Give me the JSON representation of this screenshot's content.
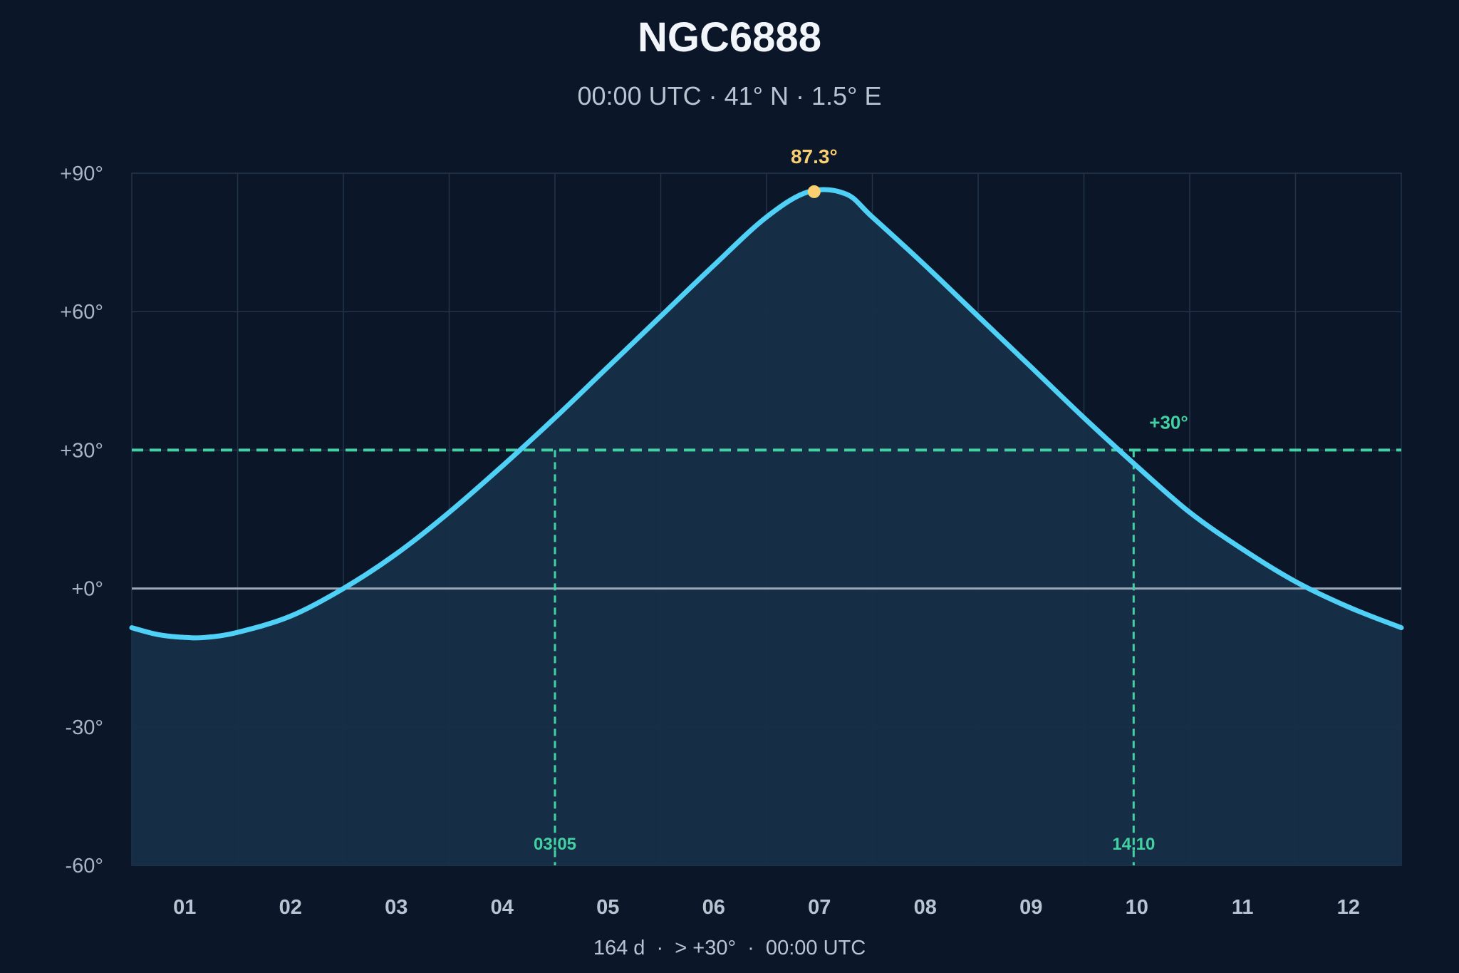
{
  "header": {
    "title": "NGC6888",
    "subtitle": "00:00 UTC · 41° N · 1.5° E"
  },
  "footer": {
    "text": "164 d  ·  > +30°  ·  00:00 UTC"
  },
  "colors": {
    "background": "#0b1628",
    "curve": "#4fd0f7",
    "fill": "#162f47",
    "threshold": "#42d1a3",
    "peak": "#f9cf72",
    "horizon": "#9aa9ba"
  },
  "chart_data": {
    "type": "area",
    "title": "NGC6888",
    "subtitle": "00:00 UTC · 41° N · 1.5° E",
    "xlabel": "",
    "ylabel": "",
    "x_tick_labels": [
      "01",
      "02",
      "03",
      "04",
      "05",
      "06",
      "07",
      "08",
      "09",
      "10",
      "11",
      "12"
    ],
    "y_tick_labels": [
      "+90°",
      "+60°",
      "+30°",
      "+0°",
      "-30°",
      "-60°"
    ],
    "y_ticks": [
      90,
      60,
      30,
      0,
      -30,
      -60
    ],
    "ylim": [
      -60,
      90
    ],
    "xlim": [
      0,
      12
    ],
    "x_unit": "month",
    "grid": true,
    "series": [
      {
        "x": [
          0,
          0.25,
          0.5,
          0.7,
          1.0,
          1.5,
          2.0,
          2.5,
          3.0,
          3.5,
          4.0,
          4.5,
          5.0,
          5.5,
          6.0,
          6.4,
          6.75,
          7.0,
          7.5,
          8.0,
          8.5,
          9.0,
          9.5,
          10.0,
          10.5,
          11.0,
          11.5,
          12.0
        ],
        "y": [
          -8.5,
          -10,
          -10.6,
          -10.6,
          -9.5,
          -6,
          0,
          7.5,
          16.5,
          26.5,
          37,
          48,
          59,
          70,
          80.5,
          86,
          85.5,
          80.5,
          70,
          59,
          48,
          37,
          26.5,
          16.5,
          8.5,
          1.5,
          -4,
          -8.5
        ]
      }
    ],
    "peak": {
      "x": 6.45,
      "y": 87.3,
      "label": "87.3°"
    },
    "threshold": {
      "y": 30,
      "label": "+30°"
    },
    "crossings": [
      {
        "x": 4.0,
        "label": "03.05"
      },
      {
        "x": 9.47,
        "label": "14.10"
      }
    ],
    "horizon_y": 0
  }
}
